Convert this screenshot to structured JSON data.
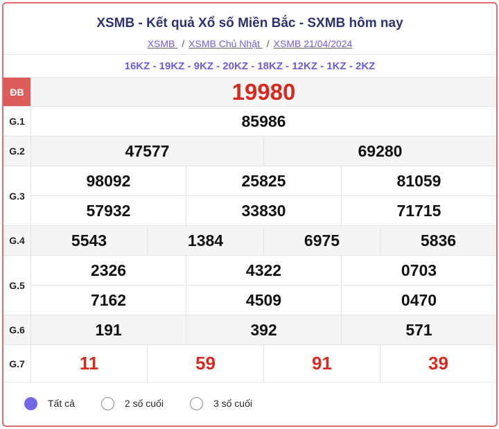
{
  "header": {
    "title": "XSMB - Kết quả Xổ số Miền Bắc - SXMB hôm nay",
    "breadcrumbs": [
      "XSMB ",
      "XSMB Chủ Nhật ",
      "XSMB 21/04/2024"
    ],
    "separator": "/"
  },
  "codes": "16KZ - 19KZ - 9KZ - 20KZ - 18KZ - 12KZ - 1KZ - 2KZ",
  "prizes": {
    "db": {
      "label": "ĐB",
      "values": [
        "19980"
      ]
    },
    "g1": {
      "label": "G.1",
      "values": [
        "85986"
      ]
    },
    "g2": {
      "label": "G.2",
      "values": [
        "47577",
        "69280"
      ]
    },
    "g3": {
      "label": "G.3",
      "values": [
        "98092",
        "25825",
        "81059",
        "57932",
        "33830",
        "71715"
      ]
    },
    "g4": {
      "label": "G.4",
      "values": [
        "5543",
        "1384",
        "6975",
        "5836"
      ]
    },
    "g5": {
      "label": "G.5",
      "values": [
        "2326",
        "4322",
        "0703",
        "7162",
        "4509",
        "0470"
      ]
    },
    "g6": {
      "label": "G.6",
      "values": [
        "191",
        "392",
        "571"
      ]
    },
    "g7": {
      "label": "G.7",
      "values": [
        "11",
        "59",
        "91",
        "39"
      ]
    }
  },
  "filter": {
    "options": [
      "Tất cả",
      "2 số cuối",
      "3 số cuối"
    ],
    "selected": "Tất cả"
  },
  "colors": {
    "accent": "#7468e8",
    "red": "#d62a20",
    "title": "#2d3270",
    "border": "#e06b6b"
  }
}
